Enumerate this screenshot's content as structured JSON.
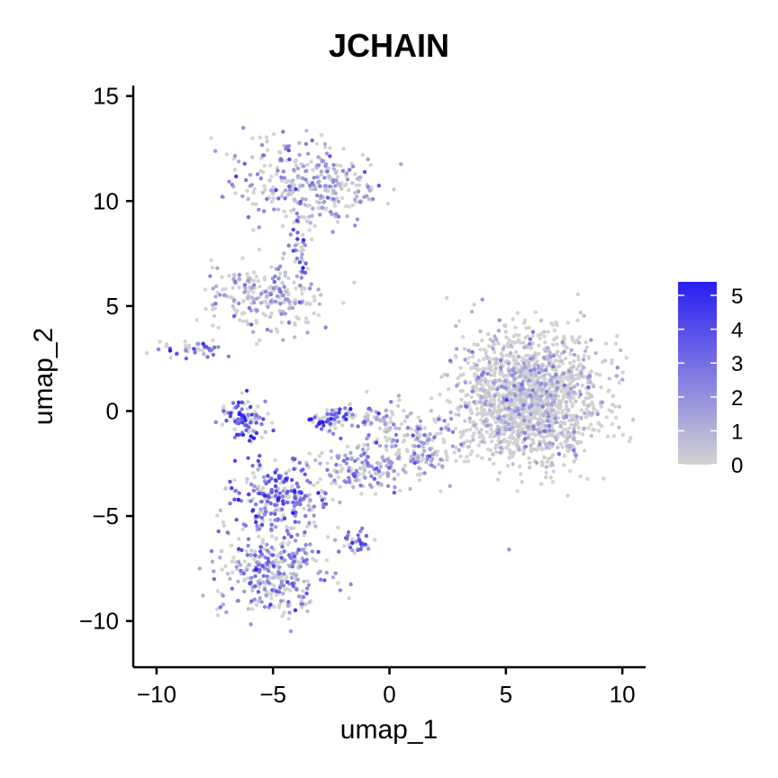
{
  "chart_data": {
    "type": "scatter",
    "title": "JCHAIN",
    "xlabel": "umap_1",
    "ylabel": "umap_2",
    "xlim": [
      -11,
      11
    ],
    "ylim": [
      -12.2,
      15.5
    ],
    "xticks": [
      -10,
      -5,
      0,
      5,
      10
    ],
    "xtick_labels": [
      "−10",
      "−5",
      "0",
      "5",
      "10"
    ],
    "yticks": [
      -10,
      -5,
      0,
      5,
      10,
      15
    ],
    "ytick_labels": [
      "−10",
      "−5",
      "0",
      "5",
      "10",
      "15"
    ],
    "grid": false,
    "legend": {
      "placement": "right",
      "type": "colorbar",
      "min": 0,
      "max": 5.4,
      "ticks": [
        0,
        1,
        2,
        3,
        4,
        5
      ],
      "tick_labels": [
        "0",
        "1",
        "2",
        "3",
        "4",
        "5"
      ],
      "low_color": "#d3d3d3",
      "high_color": "#2a1ef2"
    },
    "clusters": [
      {
        "cx": -4.2,
        "cy": 11.0,
        "sx": 1.8,
        "sy": 1.3,
        "mean_expr": 1.8,
        "n": 220
      },
      {
        "cx": -2.2,
        "cy": 10.5,
        "sx": 1.2,
        "sy": 1.1,
        "mean_expr": 0.7,
        "n": 110
      },
      {
        "cx": -5.3,
        "cy": 5.4,
        "sx": 1.6,
        "sy": 1.2,
        "mean_expr": 0.9,
        "n": 230
      },
      {
        "cx": -3.7,
        "cy": 7.5,
        "sx": 0.35,
        "sy": 1.4,
        "mean_expr": 2.8,
        "n": 45
      },
      {
        "cx": -8.3,
        "cy": 2.9,
        "sx": 0.9,
        "sy": 0.25,
        "mean_expr": 3.2,
        "n": 45
      },
      {
        "cx": -6.2,
        "cy": -0.4,
        "sx": 0.7,
        "sy": 0.7,
        "mean_expr": 3.7,
        "n": 90
      },
      {
        "cx": -2.5,
        "cy": -0.3,
        "sx": 0.7,
        "sy": 0.4,
        "mean_expr": 3.5,
        "n": 55
      },
      {
        "cx": -0.7,
        "cy": -0.3,
        "sx": 0.9,
        "sy": 0.6,
        "mean_expr": 1.2,
        "n": 60
      },
      {
        "cx": -4.6,
        "cy": -4.0,
        "sx": 1.4,
        "sy": 1.1,
        "mean_expr": 3.0,
        "n": 230
      },
      {
        "cx": -5.0,
        "cy": -7.5,
        "sx": 1.5,
        "sy": 1.5,
        "mean_expr": 1.9,
        "n": 360
      },
      {
        "cx": -1.2,
        "cy": -2.8,
        "sx": 1.4,
        "sy": 0.8,
        "mean_expr": 1.7,
        "n": 150
      },
      {
        "cx": 1.2,
        "cy": -1.5,
        "sx": 1.2,
        "sy": 1.0,
        "mean_expr": 1.1,
        "n": 150
      },
      {
        "cx": -1.4,
        "cy": -6.2,
        "sx": 0.45,
        "sy": 0.35,
        "mean_expr": 3.0,
        "n": 30
      },
      {
        "cx": 6.0,
        "cy": 0.6,
        "sx": 2.0,
        "sy": 2.0,
        "mean_expr": 0.1,
        "n": 1700
      }
    ]
  }
}
